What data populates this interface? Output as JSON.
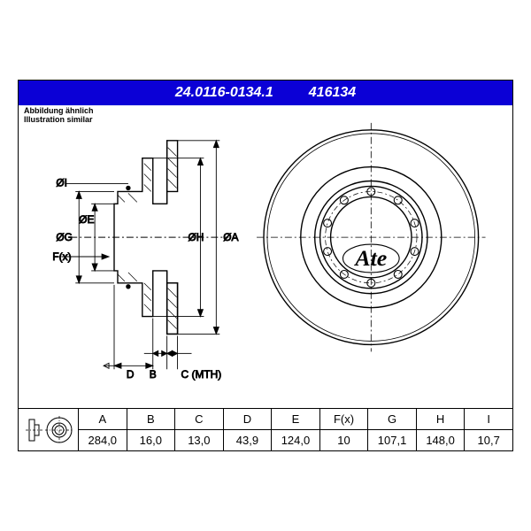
{
  "header": {
    "part_number": "24.0116-0134.1",
    "code": "416134",
    "bar_color": "#0b00d6",
    "text_color": "#ffffff"
  },
  "subtitle": {
    "line1": "Abbildung ähnlich",
    "line2": "Illustration similar"
  },
  "logo_text": "Ate",
  "diagram": {
    "stroke": "#000000",
    "centerline_dash": "8 3 2 3",
    "labels": {
      "diaI": "ØI",
      "diaG": "ØG",
      "diaE": "ØE",
      "diaH": "ØH",
      "diaA": "ØA",
      "Fx": "F(x)",
      "D": "D",
      "B": "B",
      "C_MTH": "C (MTH)"
    }
  },
  "spec": {
    "columns": [
      "A",
      "B",
      "C",
      "D",
      "E",
      "F(x)",
      "G",
      "H",
      "I"
    ],
    "values": [
      "284,0",
      "16,0",
      "13,0",
      "43,9",
      "124,0",
      "10",
      "107,1",
      "148,0",
      "10,7"
    ]
  }
}
